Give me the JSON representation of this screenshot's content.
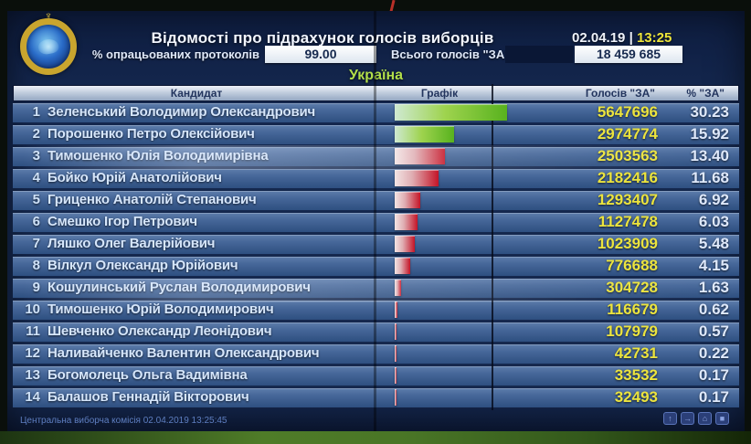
{
  "screen": {
    "title": "Відомості про підрахунок голосів виборців",
    "datetime": {
      "date": "02.04.19",
      "separator": "|",
      "time": "13:25"
    },
    "protocols_label": "% опрацьованих протоколів",
    "protocols_value": "99.00",
    "total_label": "Всього голосів \"ЗА\"",
    "total_value": "18 459 685",
    "region": "Україна",
    "footer": "Центральна виборча комісія 02.04.2019 13:25:45"
  },
  "table": {
    "headers": {
      "candidate": "Кандидат",
      "chart": "Графік",
      "votes": "Голосів \"ЗА\"",
      "percent": "% \"ЗА\""
    },
    "rows": [
      {
        "rank": "1",
        "name": "Зеленський Володимир Олександрович",
        "votes": "5647696",
        "percent": "30.23",
        "pct": 30.23,
        "bar_color": "green"
      },
      {
        "rank": "2",
        "name": "Порошенко Петро Олексійович",
        "votes": "2974774",
        "percent": "15.92",
        "pct": 15.92,
        "bar_color": "green"
      },
      {
        "rank": "3",
        "name": "Тимошенко Юлія Володимирівна",
        "votes": "2503563",
        "percent": "13.40",
        "pct": 13.4,
        "bar_color": "red"
      },
      {
        "rank": "4",
        "name": "Бойко Юрій Анатолійович",
        "votes": "2182416",
        "percent": "11.68",
        "pct": 11.68,
        "bar_color": "red"
      },
      {
        "rank": "5",
        "name": "Гриценко Анатолій Степанович",
        "votes": "1293407",
        "percent": "6.92",
        "pct": 6.92,
        "bar_color": "red"
      },
      {
        "rank": "6",
        "name": "Смешко Ігор Петрович",
        "votes": "1127478",
        "percent": "6.03",
        "pct": 6.03,
        "bar_color": "red"
      },
      {
        "rank": "7",
        "name": "Ляшко Олег Валерійович",
        "votes": "1023909",
        "percent": "5.48",
        "pct": 5.48,
        "bar_color": "red"
      },
      {
        "rank": "8",
        "name": "Вілкул Олександр Юрійович",
        "votes": "776688",
        "percent": "4.15",
        "pct": 4.15,
        "bar_color": "red"
      },
      {
        "rank": "9",
        "name": "Кошулинський Руслан Володимирович",
        "votes": "304728",
        "percent": "1.63",
        "pct": 1.63,
        "bar_color": "red"
      },
      {
        "rank": "10",
        "name": "Тимошенко Юрій Володимирович",
        "votes": "116679",
        "percent": "0.62",
        "pct": 0.62,
        "bar_color": "red"
      },
      {
        "rank": "11",
        "name": "Шевченко Олександр Леонідович",
        "votes": "107979",
        "percent": "0.57",
        "pct": 0.57,
        "bar_color": "red"
      },
      {
        "rank": "12",
        "name": "Наливайченко Валентин Олександрович",
        "votes": "42731",
        "percent": "0.22",
        "pct": 0.22,
        "bar_color": "red"
      },
      {
        "rank": "13",
        "name": "Богомолець Ольга Вадимівна",
        "votes": "33532",
        "percent": "0.17",
        "pct": 0.17,
        "bar_color": "red"
      },
      {
        "rank": "14",
        "name": "Балашов Геннадій Вікторович",
        "votes": "32493",
        "percent": "0.17",
        "pct": 0.17,
        "bar_color": "red"
      }
    ]
  },
  "footer_icons": [
    "↑",
    "→",
    "⌂",
    "■"
  ],
  "colors": {
    "votes_yellow": "#ece43e",
    "time_yellow": "#ede53a",
    "region_green": "#b2df4a",
    "bar_green": "#58b21e",
    "bar_red": "#c41427",
    "screen_navy": "#16294e"
  },
  "chart_data": {
    "type": "bar",
    "orientation": "horizontal",
    "title": "Відомості про підрахунок голосів виборців — Україна",
    "subtitle": "02.04.19 | 13:25, опрацьовано протоколів: 99.00%, всього голосів \"ЗА\": 18 459 685",
    "xlabel": "% \"ЗА\"",
    "ylabel": "Кандидат",
    "xlim": [
      0,
      32
    ],
    "grid": false,
    "legend_position": "none",
    "categories": [
      "Зеленський Володимир Олександрович",
      "Порошенко Петро Олексійович",
      "Тимошенко Юлія Володимирівна",
      "Бойко Юрій Анатолійович",
      "Гриценко Анатолій Степанович",
      "Смешко Ігор Петрович",
      "Ляшко Олег Валерійович",
      "Вілкул Олександр Юрійович",
      "Кошулинський Руслан Володимирович",
      "Тимошенко Юрій Володимирович",
      "Шевченко Олександр Леонідович",
      "Наливайченко Валентин Олександрович",
      "Богомолець Ольга Вадимівна",
      "Балашов Геннадій Вікторович"
    ],
    "series": [
      {
        "name": "Голосів \"ЗА\"",
        "values": [
          5647696,
          2974774,
          2503563,
          2182416,
          1293407,
          1127478,
          1023909,
          776688,
          304728,
          116679,
          107979,
          42731,
          33532,
          32493
        ]
      },
      {
        "name": "% \"ЗА\"",
        "values": [
          30.23,
          15.92,
          13.4,
          11.68,
          6.92,
          6.03,
          5.48,
          4.15,
          1.63,
          0.62,
          0.57,
          0.22,
          0.17,
          0.17
        ]
      }
    ],
    "bar_colors": [
      "#58b21e",
      "#58b21e",
      "#c41427",
      "#c41427",
      "#c41427",
      "#c41427",
      "#c41427",
      "#c41427",
      "#c41427",
      "#c41427",
      "#c41427",
      "#c41427",
      "#c41427",
      "#c41427"
    ]
  }
}
